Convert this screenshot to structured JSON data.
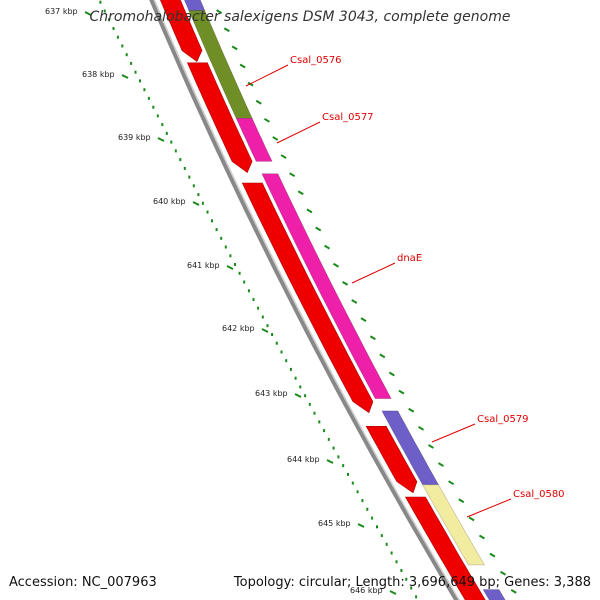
{
  "title": "Chromohalobacter salexigens DSM 3043, complete genome",
  "footer": {
    "accession": "Accession: NC_007963",
    "topology": "Topology: circular; Length: 3,696,649 bp; Genes: 3,388"
  },
  "ticks": [
    "637 kbp",
    "638 kbp",
    "639 kbp",
    "640 kbp",
    "641 kbp",
    "642 kbp",
    "643 kbp",
    "644 kbp",
    "645 kbp",
    "646 kbp"
  ],
  "gene_labels": [
    "Csal_0576",
    "Csal_0577",
    "dnaE",
    "Csal_0579",
    "Csal_0580"
  ],
  "colors": {
    "cds": "#ee0000",
    "backbone": "#888888",
    "tick_mark": "#1a8a1a",
    "label": "#e00000",
    "olive": "#6f8f26",
    "magenta": "#ee1fa8",
    "purple": "#6d5ec8",
    "cream": "#f2eca0"
  }
}
